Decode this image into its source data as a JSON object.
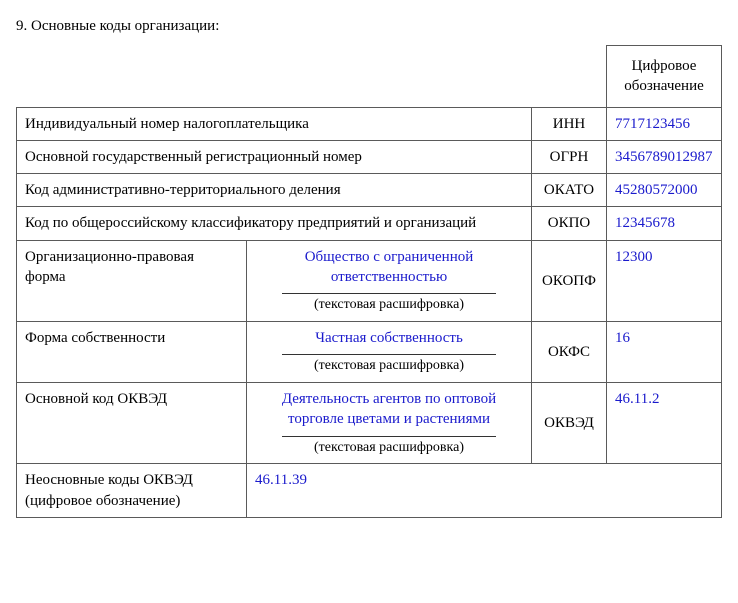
{
  "title": "9. Основные коды организации:",
  "headerValueCol": "Цифровое обозначение",
  "captionText": "(текстовая расшифровка)",
  "rows": {
    "inn": {
      "label": "Индивидуальный номер налогоплательщика",
      "abbr": "ИНН",
      "value": "7717123456"
    },
    "ogrn": {
      "label": "Основной государственный регистрационный номер",
      "abbr": "ОГРН",
      "value": "3456789012987"
    },
    "okato": {
      "label": "Код административно-территориального деления",
      "abbr": "ОКАТО",
      "value": "45280572000"
    },
    "okpo": {
      "label": "Код по общероссийскому классификатору предприятий и организаций",
      "abbr": "ОКПО",
      "value": "12345678"
    },
    "okopf": {
      "label": "Организационно-правовая форма",
      "desc": "Общество с ограниченной ответственностью",
      "abbr": "ОКОПФ",
      "value": "12300"
    },
    "okfs": {
      "label": "Форма собственности",
      "desc": "Частная собственность",
      "abbr": "ОКФС",
      "value": "16"
    },
    "okved": {
      "label": "Основной код ОКВЭД",
      "desc": "Деятельность агентов по оптовой торговле цветами и растениями",
      "abbr": "ОКВЭД",
      "value": "46.11.2"
    },
    "extra": {
      "label": "Неосновные коды ОКВЭД (цифровое обозначение)",
      "value": "46.11.39"
    }
  },
  "colors": {
    "text": "#000000",
    "value": "#1a1acc",
    "border": "#5a5a5a",
    "background": "#ffffff"
  }
}
